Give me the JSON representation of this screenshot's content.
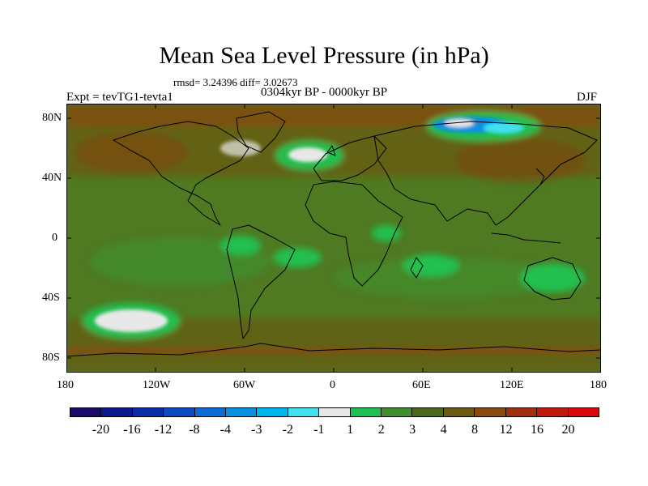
{
  "header": {
    "title": "Mean Sea Level Pressure (in hPa)",
    "stats": "rmsd= 3.24396 diff= 3.02673",
    "period": "0304kyr BP - 0000kyr BP",
    "experiment": "Expt = tevTG1-tevta1",
    "season": "DJF"
  },
  "axes": {
    "y_ticks": [
      "80N",
      "40N",
      "0",
      "40S",
      "80S"
    ],
    "x_ticks": [
      "180",
      "120W",
      "60W",
      "0",
      "60E",
      "120E",
      "180"
    ]
  },
  "colorbar": {
    "labels": [
      "-20",
      "-16",
      "-12",
      "-8",
      "-4",
      "-3",
      "-2",
      "-1",
      "1",
      "2",
      "3",
      "4",
      "8",
      "12",
      "16",
      "20"
    ],
    "colors": [
      "#1a0a6b",
      "#0a1a8c",
      "#0a2ea8",
      "#0a4cc0",
      "#0a6cd4",
      "#0a90e0",
      "#00b4ec",
      "#40e0f0",
      "#e8e8e8",
      "#20c050",
      "#3f8f2f",
      "#4a6a1a",
      "#6a5a10",
      "#8a4a10",
      "#a03010",
      "#c01a0a",
      "#d80a0a"
    ]
  },
  "map": {
    "region": "global",
    "field": "mean sea level pressure anomaly",
    "background_color": "#4f7a22"
  }
}
